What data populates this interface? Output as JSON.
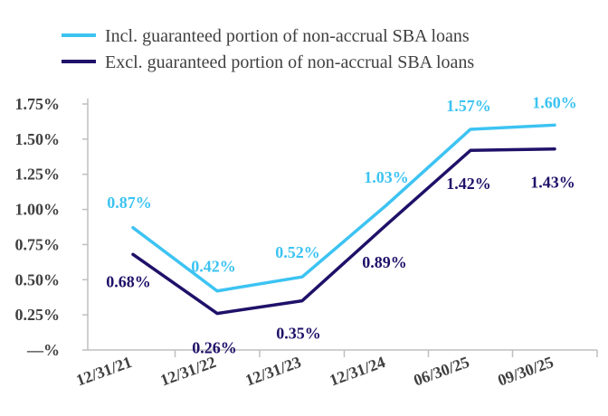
{
  "chart_data": {
    "type": "line",
    "categories": [
      "12/31/21",
      "12/31/22",
      "12/31/23",
      "12/31/24",
      "06/30/25",
      "09/30/25"
    ],
    "series": [
      {
        "name": "Incl. guaranteed portion of non-accrual SBA loans",
        "color": "#3cc3f2",
        "values": [
          0.87,
          0.42,
          0.52,
          1.03,
          1.57,
          1.6
        ],
        "labels": [
          "0.87%",
          "0.42%",
          "0.52%",
          "1.03%",
          "1.57%",
          "1.60%"
        ]
      },
      {
        "name": "Excl. guaranteed portion of non-accrual SBA loans",
        "color": "#1f1169",
        "values": [
          0.68,
          0.26,
          0.35,
          0.89,
          1.42,
          1.43
        ],
        "labels": [
          "0.68%",
          "0.26%",
          "0.35%",
          "0.89%",
          "1.42%",
          "1.43%"
        ]
      }
    ],
    "y_ticks": [
      {
        "value": 0.0,
        "label": "—%"
      },
      {
        "value": 0.25,
        "label": "0.25%"
      },
      {
        "value": 0.5,
        "label": "0.50%"
      },
      {
        "value": 0.75,
        "label": "0.75%"
      },
      {
        "value": 1.0,
        "label": "1.00%"
      },
      {
        "value": 1.25,
        "label": "1.25%"
      },
      {
        "value": 1.5,
        "label": "1.50%"
      },
      {
        "value": 1.75,
        "label": "1.75%"
      }
    ],
    "ylim": [
      0,
      1.75
    ],
    "grid": false,
    "legend_position": "top-center",
    "axis_color": "#bfbfbf",
    "text_color": "#404040"
  }
}
